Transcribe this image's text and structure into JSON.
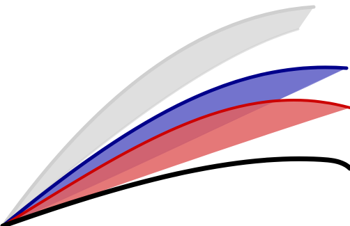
{
  "colors": {
    "background": "#ffffff",
    "gray_fill": "#d9d9d9",
    "gray_stroke": "#cfcfcf",
    "blue_fill": "#5b5bc4",
    "blue_stroke": "#00008b",
    "red_fill": "#e06060",
    "red_stroke": "#cc0000",
    "black_stroke": "#000000"
  }
}
